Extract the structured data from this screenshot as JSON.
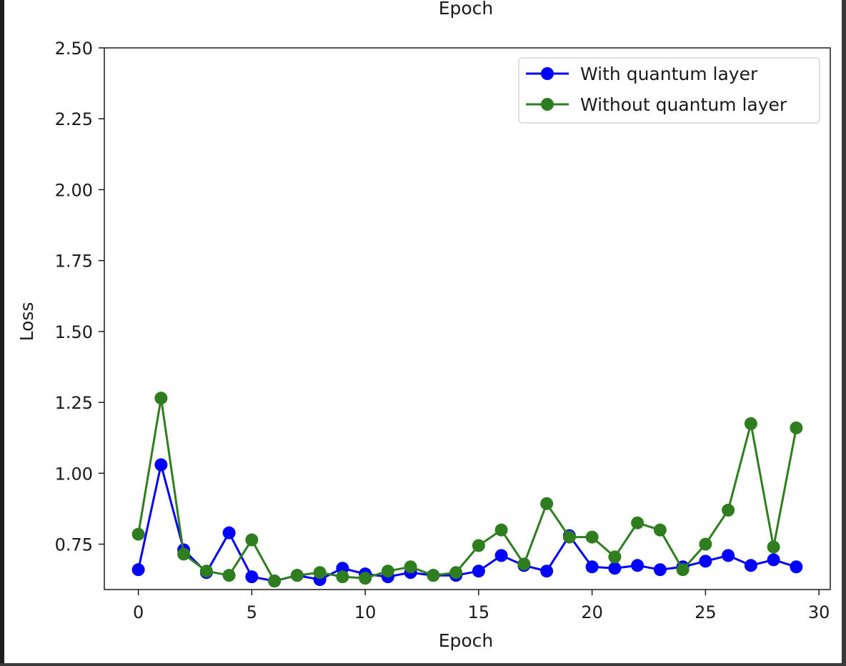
{
  "chart_data": {
    "type": "line",
    "title": "Epoch",
    "xlabel": "Epoch",
    "ylabel": "Loss",
    "xlim": [
      -1.5,
      30.5
    ],
    "ylim": [
      0.59,
      2.5
    ],
    "xticks": [
      0,
      5,
      10,
      15,
      20,
      25,
      30
    ],
    "yticks": [
      0.75,
      1.0,
      1.25,
      1.5,
      1.75,
      2.0,
      2.25,
      2.5
    ],
    "ytick_labels": [
      "0.75",
      "1.00",
      "1.25",
      "1.50",
      "1.75",
      "2.00",
      "2.25",
      "2.50"
    ],
    "legend_position": "top-right",
    "grid": false,
    "x": [
      0,
      1,
      2,
      3,
      4,
      5,
      6,
      7,
      8,
      9,
      10,
      11,
      12,
      13,
      14,
      15,
      16,
      17,
      18,
      19,
      20,
      21,
      22,
      23,
      24,
      25,
      26,
      27,
      28,
      29
    ],
    "series": [
      {
        "name": "With quantum layer",
        "color": "#0000ff",
        "marker": "circle",
        "values": [
          0.66,
          1.03,
          0.73,
          0.65,
          0.79,
          0.635,
          0.62,
          0.64,
          0.625,
          0.665,
          0.645,
          0.635,
          0.65,
          0.64,
          0.64,
          0.655,
          0.71,
          0.675,
          0.655,
          0.78,
          0.67,
          0.665,
          0.675,
          0.66,
          0.67,
          0.69,
          0.71,
          0.675,
          0.695,
          0.67
        ]
      },
      {
        "name": "Without quantum layer",
        "color": "#2e7d1e",
        "marker": "circle",
        "values": [
          0.785,
          1.265,
          0.715,
          0.655,
          0.64,
          0.765,
          0.62,
          0.64,
          0.65,
          0.635,
          0.63,
          0.655,
          0.67,
          0.64,
          0.65,
          0.745,
          0.8,
          0.68,
          0.893,
          0.775,
          0.775,
          0.705,
          0.825,
          0.8,
          0.66,
          0.75,
          0.87,
          1.175,
          0.74,
          1.16
        ]
      }
    ]
  }
}
